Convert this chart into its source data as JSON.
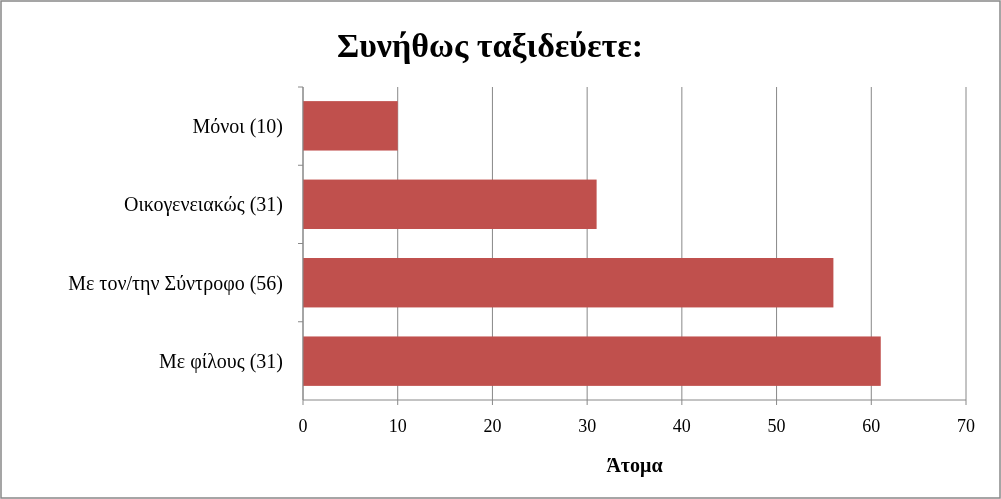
{
  "chart_data": {
    "type": "bar",
    "orientation": "horizontal",
    "title": "Συνήθως ταξιδεύετε:",
    "xlabel": "Άτομα",
    "categories": [
      "Μόνοι (10)",
      "Οικογενειακώς (31)",
      "Με τον/την Σύντροφο (56)",
      "Με φίλους (31)"
    ],
    "values": [
      10,
      31,
      56,
      61
    ],
    "color": "#c0504d",
    "xlim": [
      0,
      70
    ],
    "xticks": [
      0,
      10,
      20,
      30,
      40,
      50,
      60,
      70
    ],
    "grid": "x"
  }
}
